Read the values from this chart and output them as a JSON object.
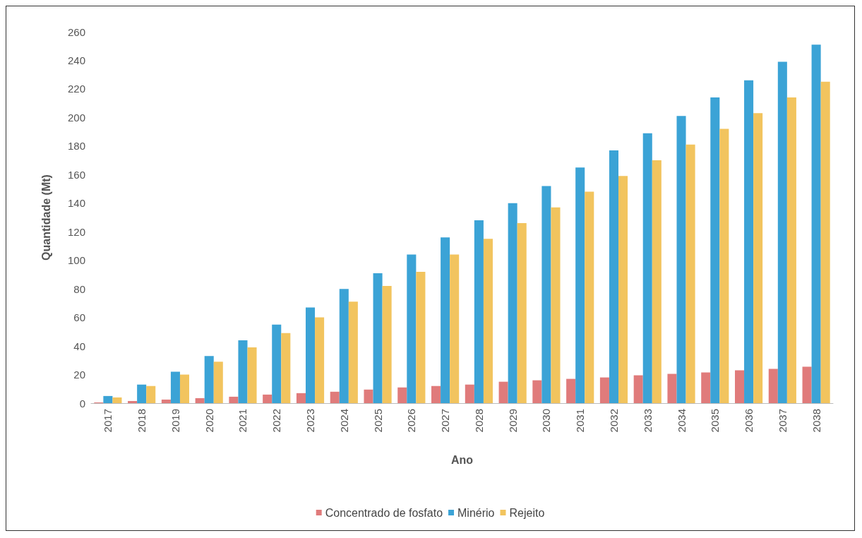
{
  "chart_data": {
    "type": "bar",
    "xlabel": "Ano",
    "ylabel": "Quantidade (Mt)",
    "categories": [
      "2017",
      "2018",
      "2019",
      "2020",
      "2021",
      "2022",
      "2023",
      "2024",
      "2025",
      "2026",
      "2027",
      "2028",
      "2029",
      "2030",
      "2031",
      "2032",
      "2033",
      "2034",
      "2035",
      "2036",
      "2037",
      "2038"
    ],
    "series": [
      {
        "name": "Concentrado de fosfato",
        "color": "#e07b7b",
        "values": [
          0.5,
          1.5,
          2.5,
          3.5,
          4.5,
          6,
          7,
          8,
          9.5,
          11,
          12,
          13,
          15,
          16,
          17,
          18,
          19.5,
          20.5,
          21.5,
          23,
          24,
          25.5
        ]
      },
      {
        "name": "Minério",
        "color": "#3ba3d6",
        "values": [
          5,
          13,
          22,
          33,
          44,
          55,
          67,
          80,
          91,
          104,
          116,
          128,
          140,
          152,
          165,
          177,
          189,
          201,
          214,
          226,
          239,
          251
        ]
      },
      {
        "name": "Rejeito",
        "color": "#f2c45e",
        "values": [
          4,
          12,
          20,
          29,
          39,
          49,
          60,
          71,
          82,
          92,
          104,
          115,
          126,
          137,
          148,
          159,
          170,
          181,
          192,
          203,
          214,
          225
        ]
      }
    ],
    "ylim": [
      0,
      260
    ],
    "yticks": [
      0,
      20,
      40,
      60,
      80,
      100,
      120,
      140,
      160,
      180,
      200,
      220,
      240,
      260
    ],
    "grid": false,
    "legend": "bottom"
  }
}
